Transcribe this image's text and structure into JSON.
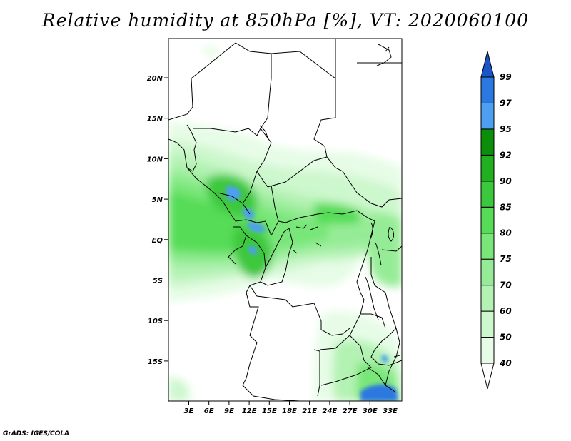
{
  "title": "Relative humidity at 850hPa [%], VT: 2020060100",
  "credit": "GrADS: IGES/COLA",
  "axes": {
    "lat_labels": [
      "20N",
      "15N",
      "10N",
      "5N",
      "EQ",
      "5S",
      "10S",
      "15S"
    ],
    "lon_labels": [
      "3E",
      "6E",
      "9E",
      "12E",
      "15E",
      "18E",
      "21E",
      "24E",
      "27E",
      "30E",
      "33E"
    ]
  },
  "colorbar": {
    "levels": [
      "40",
      "50",
      "60",
      "70",
      "75",
      "80",
      "85",
      "90",
      "92",
      "95",
      "97",
      "99"
    ],
    "colors": [
      "#ffffff",
      "#e6fce6",
      "#cdf7cd",
      "#b4f2b4",
      "#96ec96",
      "#78e678",
      "#56dc56",
      "#3cc83c",
      "#20b020",
      "#0b8f0b",
      "#4e9ff2",
      "#2a78e0",
      "#1a55c8"
    ]
  }
}
